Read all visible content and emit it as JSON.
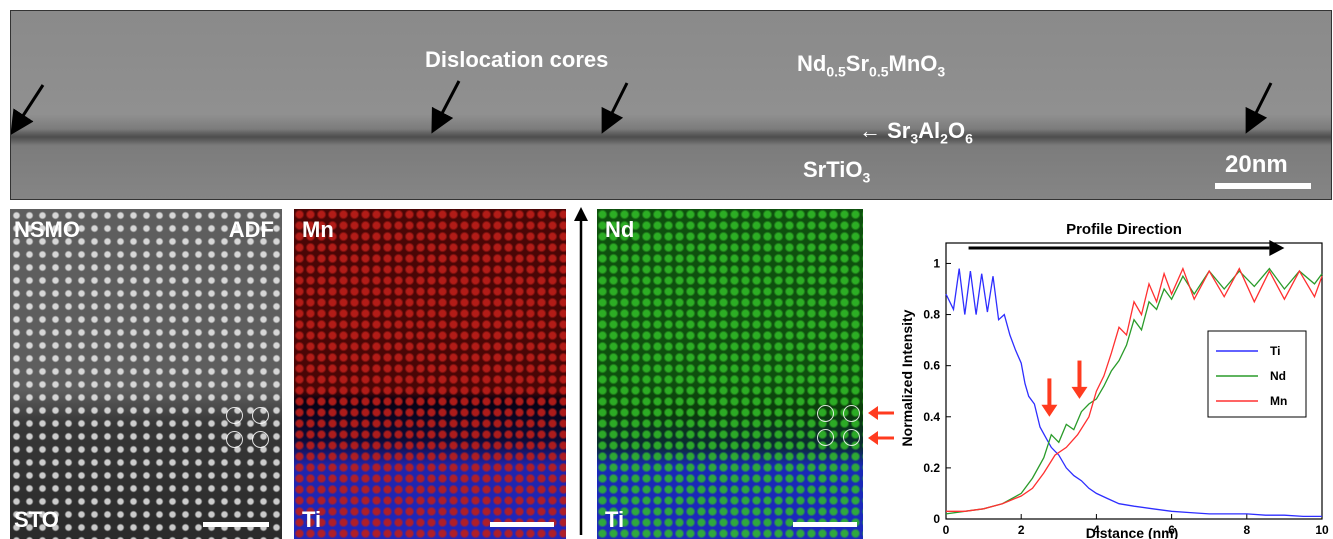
{
  "top_panel": {
    "title": "Dislocation cores",
    "film_label": {
      "base": "Nd",
      "sub1": "0.5",
      "mid": "Sr",
      "sub2": "0.5",
      "tail": "MnO",
      "sub3": "3"
    },
    "buffer_label": {
      "arrow": "←",
      "base": "Sr",
      "sub1": "3",
      "mid": "Al",
      "sub2": "2",
      "tail": "O",
      "sub3": "6"
    },
    "substrate_label": {
      "base": "SrTiO",
      "sub1": "3"
    },
    "scale_bar": "20nm"
  },
  "adf_panel": {
    "label_top_left": "NSMO",
    "label_top_right": "ADF",
    "label_bottom": "STO"
  },
  "mn_panel": {
    "label_top": "Mn",
    "label_bottom": "Ti"
  },
  "nd_panel": {
    "label_top": "Nd",
    "label_bottom": "Ti"
  },
  "colors": {
    "ti": "#2e2eff",
    "nd": "#2a9b2a",
    "mn": "#ff3030",
    "red_arrow": "#ff3b1f"
  },
  "chart_data": {
    "type": "line",
    "title": "Profile Direction",
    "xlabel": "Distance (nm)",
    "ylabel": "Normalized Intensity",
    "xlim": [
      0,
      10
    ],
    "ylim": [
      0,
      1.08
    ],
    "xticks": [
      "0",
      "2",
      "4",
      "6",
      "8",
      "10"
    ],
    "yticks": [
      "0",
      "0.2",
      "0.4",
      "0.6",
      "0.8",
      "1"
    ],
    "series": [
      {
        "name": "Ti",
        "color": "#2e2eff",
        "x": [
          0,
          0.2,
          0.35,
          0.5,
          0.65,
          0.8,
          0.95,
          1.1,
          1.25,
          1.4,
          1.55,
          1.7,
          1.85,
          2.0,
          2.1,
          2.2,
          2.35,
          2.5,
          2.65,
          2.8,
          3.0,
          3.2,
          3.4,
          3.6,
          3.8,
          4.0,
          4.3,
          4.6,
          5.0,
          5.5,
          6.0,
          6.5,
          7.0,
          7.5,
          8.0,
          8.5,
          9.0,
          9.5,
          10.0
        ],
        "y": [
          0.88,
          0.82,
          0.98,
          0.8,
          0.97,
          0.8,
          0.96,
          0.81,
          0.95,
          0.78,
          0.8,
          0.72,
          0.66,
          0.61,
          0.53,
          0.48,
          0.45,
          0.36,
          0.32,
          0.28,
          0.25,
          0.2,
          0.17,
          0.15,
          0.12,
          0.1,
          0.08,
          0.06,
          0.05,
          0.04,
          0.03,
          0.025,
          0.02,
          0.02,
          0.02,
          0.015,
          0.015,
          0.01,
          0.01
        ]
      },
      {
        "name": "Nd",
        "color": "#2a9b2a",
        "x": [
          0,
          0.5,
          1.0,
          1.5,
          2.0,
          2.3,
          2.6,
          2.8,
          3.0,
          3.2,
          3.4,
          3.6,
          3.8,
          4.0,
          4.2,
          4.4,
          4.6,
          4.8,
          5.0,
          5.2,
          5.4,
          5.6,
          5.8,
          6.0,
          6.3,
          6.6,
          7.0,
          7.4,
          7.8,
          8.2,
          8.6,
          9.0,
          9.4,
          9.8,
          10.0
        ],
        "y": [
          0.02,
          0.03,
          0.04,
          0.06,
          0.1,
          0.16,
          0.24,
          0.33,
          0.3,
          0.37,
          0.35,
          0.42,
          0.45,
          0.47,
          0.52,
          0.58,
          0.62,
          0.68,
          0.78,
          0.74,
          0.85,
          0.82,
          0.9,
          0.86,
          0.95,
          0.88,
          0.97,
          0.9,
          0.97,
          0.91,
          0.98,
          0.9,
          0.97,
          0.92,
          0.96
        ]
      },
      {
        "name": "Mn",
        "color": "#ff3030",
        "x": [
          0,
          0.5,
          1.0,
          1.5,
          2.0,
          2.3,
          2.6,
          2.9,
          3.2,
          3.5,
          3.8,
          4.0,
          4.2,
          4.4,
          4.6,
          4.8,
          5.0,
          5.2,
          5.4,
          5.6,
          5.8,
          6.0,
          6.3,
          6.6,
          7.0,
          7.4,
          7.8,
          8.2,
          8.6,
          9.0,
          9.4,
          9.8,
          10.0
        ],
        "y": [
          0.03,
          0.03,
          0.04,
          0.06,
          0.09,
          0.12,
          0.18,
          0.25,
          0.28,
          0.33,
          0.4,
          0.5,
          0.56,
          0.65,
          0.75,
          0.72,
          0.85,
          0.8,
          0.92,
          0.85,
          0.96,
          0.88,
          0.98,
          0.86,
          0.97,
          0.87,
          0.98,
          0.85,
          0.97,
          0.86,
          0.97,
          0.87,
          0.95
        ]
      }
    ],
    "legend": "right",
    "legend_entries": [
      "Ti",
      "Nd",
      "Mn"
    ]
  }
}
